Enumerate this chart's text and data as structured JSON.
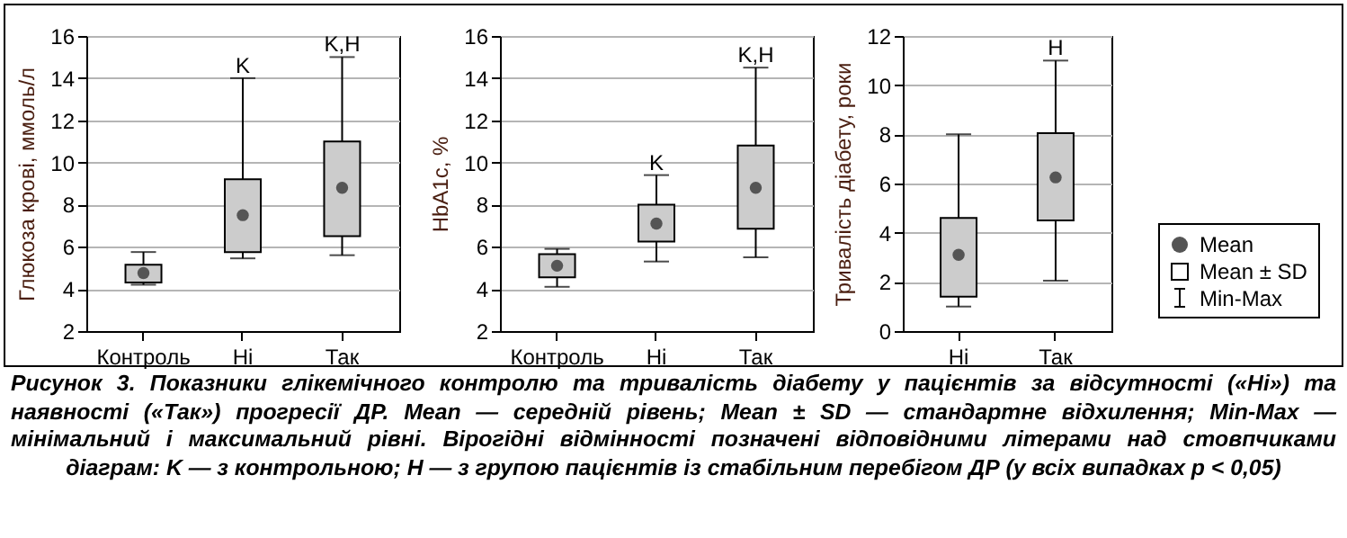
{
  "chart_data": [
    {
      "type": "box",
      "ylabel": "Глюкоза крові, ммоль/л",
      "categories": [
        "Контроль",
        "Ні",
        "Так"
      ],
      "ylim": [
        2,
        16
      ],
      "yticks": [
        2,
        4,
        6,
        8,
        10,
        12,
        14,
        16
      ],
      "grid": "y",
      "marker": "circle",
      "series": [
        {
          "color": "#cccccc",
          "boxes": [
            {
              "low": 4.2,
              "q1": 4.3,
              "median": 4.75,
              "q3": 5.15,
              "high": 5.75,
              "mean": 4.75
            },
            {
              "low": 5.45,
              "q1": 5.75,
              "median": 7.5,
              "q3": 9.2,
              "high": 14,
              "mean": 7.5
            },
            {
              "low": 5.6,
              "q1": 6.5,
              "median": 8.8,
              "q3": 11,
              "high": 15,
              "mean": 8.8
            }
          ]
        }
      ],
      "annotations": [
        {
          "text": "K",
          "x": "Ні",
          "y": 14
        },
        {
          "text": "K,H",
          "x": "Так",
          "y": 15
        },
        "Рисунок 3. Показники глікемічного контролю та тривалість діабету у пацієнтів за відсутності («Ні») та наявності («Так») прогресії ДР. Mean — середній рівень; Mean ± SD — стандартне відхилення; Min-Max — мінімальний і максимальний рівні. Вірогідні відмінності позначені відповідними літерами над стовпчиками діаграм: K — з контрольною; H — з групою пацієнтів із стабільним перебігом ДР (у всіх випадках p < 0,05)"
      ]
    },
    {
      "type": "box",
      "ylabel": "HbA1c, %",
      "categories": [
        "Контроль",
        "Ні",
        "Так"
      ],
      "ylim": [
        2,
        16
      ],
      "yticks": [
        2,
        4,
        6,
        8,
        10,
        12,
        14,
        16
      ],
      "grid": "y",
      "marker": "circle",
      "series": [
        {
          "color": "#cccccc",
          "boxes": [
            {
              "low": 4.1,
              "q1": 4.55,
              "median": 5.1,
              "q3": 5.65,
              "high": 5.9,
              "mean": 5.1
            },
            {
              "low": 5.3,
              "q1": 6.25,
              "median": 7.1,
              "q3": 8.0,
              "high": 9.4,
              "mean": 7.1
            },
            {
              "low": 5.5,
              "q1": 6.85,
              "median": 8.8,
              "q3": 10.8,
              "high": 14.5,
              "mean": 8.8
            }
          ]
        }
      ],
      "annotations": [
        {
          "text": "K",
          "x": "Ні",
          "y": 9.4
        },
        {
          "text": "K,H",
          "x": "Так",
          "y": 14.5
        }
      ]
    },
    {
      "type": "box",
      "ylabel": "Тривалість діабету, роки",
      "categories": [
        "Ні",
        "Так"
      ],
      "ylim": [
        0,
        12
      ],
      "yticks": [
        0,
        2,
        4,
        6,
        8,
        10,
        12
      ],
      "grid": "y",
      "marker": "circle",
      "series": [
        {
          "color": "#cccccc",
          "boxes": [
            {
              "low": 1.0,
              "q1": 1.4,
              "median": 3.1,
              "q3": 4.6,
              "high": 8,
              "mean": 3.1
            },
            {
              "low": 2.05,
              "q1": 4.5,
              "median": 6.25,
              "q3": 8.05,
              "high": 11,
              "mean": 6.25
            }
          ]
        }
      ],
      "annotations": [
        {
          "text": "H",
          "x": "Так",
          "y": 11
        },
        "Mean",
        "Mean ± SD",
        "Min-Max"
      ]
    }
  ]
}
